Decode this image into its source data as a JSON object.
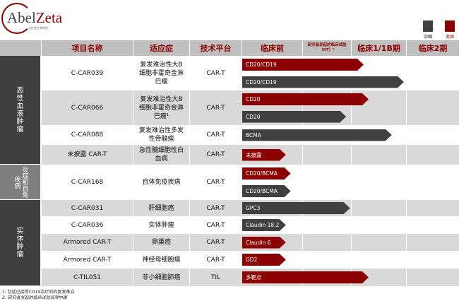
{
  "logo": {
    "name_a": "Abel",
    "name_b": "Zeta",
    "subtitle": "艾比昱生物科技"
  },
  "colors": {
    "china": "#404040",
    "us": "#8b0000",
    "header_text": "#8b0000"
  },
  "legend": [
    {
      "label": "中国",
      "color": "#404040"
    },
    {
      "label": "美国",
      "color": "#8b0000"
    }
  ],
  "headers": {
    "name": "项目名称",
    "indication": "适应症",
    "platform": "技术平台",
    "stages": [
      "临床前",
      "研究者发起的临床试验（IIT）²",
      "临床1/1B期",
      "临床2期"
    ]
  },
  "categories": [
    {
      "label": "恶性血液肿瘤",
      "rows": [
        0,
        1,
        2,
        3
      ],
      "color": "#3f3f3f"
    },
    {
      "label": "炎症和自免疾病",
      "rows": [
        4
      ],
      "color": "#7f7f7f"
    },
    {
      "label": "实体肿瘤",
      "rows": [
        5,
        6,
        7,
        8,
        9
      ],
      "color": "#3f3f3f"
    }
  ],
  "rows": [
    {
      "name": "C-CAR039",
      "indication": "复发难治性大B细胞非霍奇金淋巴瘤",
      "platform": "CAR-T",
      "bars": [
        {
          "label": "CD20/CD19",
          "region": "us",
          "progress": 2.23
        },
        {
          "label": "CD20/CD19",
          "region": "china",
          "progress": 2.96
        }
      ]
    },
    {
      "name": "C-CAR066",
      "indication": "复发难治性大B细胞非霍奇金淋巴瘤¹",
      "platform": "CAR-T",
      "bars": [
        {
          "label": "CD20",
          "region": "us",
          "progress": 2.32
        },
        {
          "label": "CD20",
          "region": "china",
          "progress": 1.9
        }
      ]
    },
    {
      "name": "C-CAR088",
      "indication": "复发难治性多发性骨髓瘤",
      "platform": "CAR-T",
      "bars": [
        {
          "label": "BCMA",
          "region": "china",
          "progress": 2.74
        }
      ]
    },
    {
      "name": "未披露 CAR-T",
      "indication": "急性髓细胞性白血病",
      "platform": "CAR-T",
      "bars": [
        {
          "label": "未披露",
          "region": "us",
          "progress": 0.73
        }
      ]
    },
    {
      "name": "C-CAR168",
      "indication": "自体免疫疾病",
      "platform": "CAR-T",
      "bars": [
        {
          "label": "CD20/BCMA",
          "region": "us",
          "progress": 0.81
        },
        {
          "label": "CD20/BCMA",
          "region": "china",
          "progress": 0.81
        }
      ]
    },
    {
      "name": "C-CAR031",
      "indication": "肝细胞癌",
      "platform": "CAR-T",
      "bars": [
        {
          "label": "GPC3",
          "region": "china",
          "progress": 1.98
        }
      ]
    },
    {
      "name": "C-CAR036",
      "indication": "实体肿瘤",
      "platform": "CAR-T",
      "bars": [
        {
          "label": "Claudin 18.2",
          "region": "china",
          "progress": 0.73
        }
      ]
    },
    {
      "name": "Armored CAR-T",
      "indication": "卵巢癌",
      "platform": "CAR-T",
      "bars": [
        {
          "label": "Claudin 6",
          "region": "us",
          "progress": 0.73
        }
      ]
    },
    {
      "name": "Armored CAR-T",
      "indication": "神经母细胞瘤",
      "platform": "CAR-T",
      "bars": [
        {
          "label": "GD2",
          "region": "us",
          "progress": 0.73
        }
      ]
    },
    {
      "name": "C-TIL051",
      "indication": "非小细胞肺癌",
      "platform": "TIL",
      "bars": [
        {
          "label": "多靶点",
          "region": "us",
          "progress": 2.32
        }
      ]
    }
  ],
  "footnotes": [
    "1: 包括已接受CD19治疗后的复发难治",
    "2: 研究者发起的临床试验仅限中国"
  ]
}
